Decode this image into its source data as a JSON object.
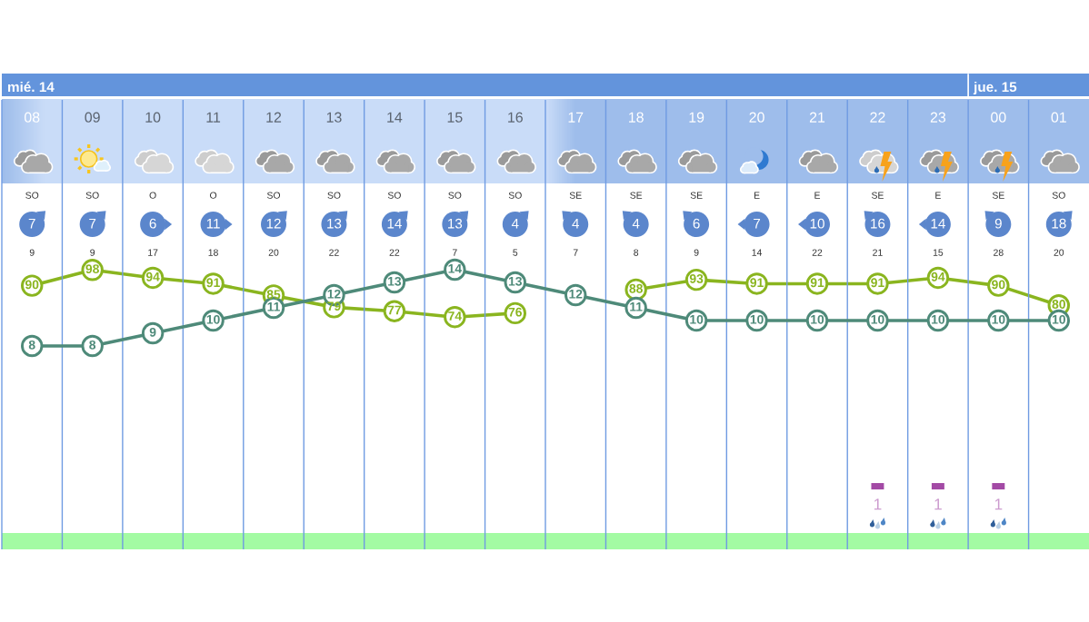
{
  "chart_data": [
    {
      "type": "line",
      "categories": [
        "08",
        "09",
        "10",
        "11",
        "12",
        "13",
        "14",
        "15",
        "16",
        "17",
        "18",
        "19",
        "20",
        "21",
        "22",
        "23",
        "00",
        "01"
      ],
      "tick_labels": "x",
      "annotations": [
        "mié. 14",
        "jue. 15"
      ],
      "series": [
        {
          "color": "#4e8a79",
          "values": [
            8,
            8,
            9,
            10,
            11,
            12,
            13,
            14,
            13,
            12,
            11,
            10,
            10,
            10,
            10,
            10,
            10,
            10
          ]
        },
        {
          "color": "#8ab51f",
          "axis": "y2",
          "values": [
            90,
            98,
            94,
            91,
            85,
            79,
            77,
            74,
            76,
            null,
            88,
            93,
            91,
            91,
            91,
            94,
            90,
            80
          ]
        }
      ],
      "marker": "circle",
      "line_style": "solid",
      "data_labels": true,
      "grid": "x"
    },
    {
      "type": "other",
      "annotations": [
        "SO",
        "SO",
        "O",
        "O",
        "SO",
        "SO",
        "SO",
        "SO",
        "SO",
        "SE",
        "SE",
        "SE",
        "E",
        "E",
        "SE",
        "E",
        "SE",
        "SO",
        "7",
        "7",
        "6",
        "11",
        "12",
        "13",
        "14",
        "13",
        "4",
        "4",
        "4",
        "6",
        "7",
        "10",
        "16",
        "14",
        "9",
        "18",
        "9",
        "9",
        "17",
        "18",
        "20",
        "22",
        "22",
        "7",
        "5",
        "7",
        "8",
        "9",
        "14",
        "22",
        "21",
        "15",
        "28",
        "20"
      ]
    },
    {
      "type": "bar",
      "categories": [
        "08",
        "09",
        "10",
        "11",
        "12",
        "13",
        "14",
        "15",
        "16",
        "17",
        "18",
        "19",
        "20",
        "21",
        "22",
        "23",
        "00",
        "01"
      ],
      "tick_labels": false,
      "values": [
        null,
        null,
        null,
        null,
        null,
        null,
        null,
        null,
        null,
        null,
        null,
        null,
        null,
        null,
        1,
        1,
        1,
        null
      ],
      "color": "#a34aa5",
      "data_labels": true
    }
  ]
}
